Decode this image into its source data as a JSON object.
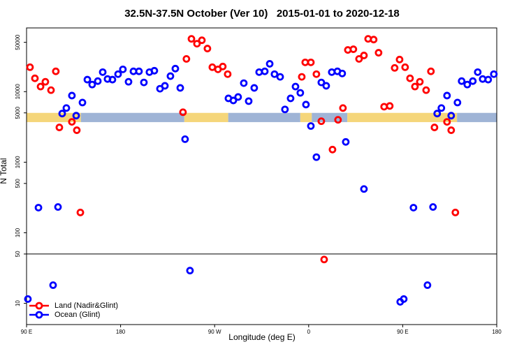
{
  "chart_data": {
    "type": "scatter",
    "title": "32.5N-37.5N October (Ver 10)   2015-01-01 to 2020-12-18",
    "xlabel": "Longitude (deg E)",
    "ylabel": "N Total",
    "xlim": [
      90,
      540
    ],
    "xticks": [
      {
        "value": 90,
        "label": "90 E"
      },
      {
        "value": 180,
        "label": "180"
      },
      {
        "value": 270,
        "label": "90 W"
      },
      {
        "value": 360,
        "label": "0"
      },
      {
        "value": 450,
        "label": "90 E"
      },
      {
        "value": 540,
        "label": "180"
      }
    ],
    "ylim": [
      5,
      80000
    ],
    "log_y": true,
    "yticks": [
      10,
      50,
      100,
      500,
      1000,
      5000,
      10000,
      50000
    ],
    "legend": "bottom-left",
    "band": {
      "ylim": [
        3700,
        5000
      ],
      "segments": [
        {
          "x": [
            90,
            142
          ],
          "color": "#f5d67a"
        },
        {
          "x": [
            142,
            241
          ],
          "color": "#9fb4d6"
        },
        {
          "x": [
            241,
            283
          ],
          "color": "#f5d67a"
        },
        {
          "x": [
            283,
            352
          ],
          "color": "#9fb4d6"
        },
        {
          "x": [
            352,
            363
          ],
          "color": "#f5d67a"
        },
        {
          "x": [
            363,
            397
          ],
          "color": "#9fb4d6"
        },
        {
          "x": [
            397,
            502
          ],
          "color": "#f5d67a"
        },
        {
          "x": [
            502,
            540
          ],
          "color": "#9fb4d6"
        }
      ]
    },
    "series": [
      {
        "name": "Land (Nadir&Glint)",
        "color": "#ff0000",
        "x": [
          93.3,
          98,
          103.4,
          108,
          113.4,
          118,
          121.4,
          133.4,
          138.1,
          141.5,
          239.7,
          243,
          247.8,
          253.1,
          257.8,
          263.1,
          267.8,
          273.2,
          277.8,
          282.5,
          353.4,
          356.7,
          362.1,
          367.4,
          372.1,
          374.8,
          382.8,
          388.1,
          392.8,
          397.5,
          402.8,
          408.2,
          412.9,
          416.9,
          422.2,
          426.9,
          432.2,
          437.6,
          442.3,
          447,
          452.3,
          457,
          461.7,
          466.4,
          472.4,
          477,
          480.4,
          492.4,
          496.4,
          500.4
        ],
        "values": [
          22200,
          15450,
          11800,
          13800,
          10500,
          19400,
          3110,
          3730,
          2840,
          194,
          5110,
          29100,
          56000,
          47800,
          53500,
          40800,
          22200,
          20700,
          22700,
          17700,
          16200,
          26000,
          26000,
          17700,
          3810,
          41.8,
          1510,
          3990,
          5860,
          39000,
          39900,
          29100,
          32600,
          56000,
          54700,
          35600,
          6120,
          6270,
          21700,
          28500,
          22200,
          15450,
          11800,
          13800,
          10500,
          19400,
          3110,
          3730,
          2840,
          194
        ]
      },
      {
        "name": "Ocean (Glint)",
        "color": "#0000ff",
        "x": [
          91.3,
          101.4,
          115.4,
          120.1,
          124.1,
          128.1,
          133.4,
          137.5,
          143.5,
          148.2,
          152.8,
          158.2,
          162.9,
          167.5,
          172.2,
          177.6,
          182.2,
          187.6,
          192.3,
          197.6,
          202.3,
          207.6,
          212.3,
          217.7,
          222.4,
          227.7,
          232.4,
          237.1,
          241.7,
          246.4,
          283.2,
          287.9,
          292.5,
          297.9,
          302.6,
          307.9,
          312.6,
          318,
          322.7,
          327.3,
          332.7,
          337.3,
          342.7,
          347.4,
          352,
          357.4,
          362.1,
          367.4,
          372.1,
          376.8,
          382.1,
          387.5,
          392.1,
          395.5,
          412.9,
          447.6,
          451,
          460.3,
          473.7,
          479,
          483,
          487,
          492.4,
          496.4,
          502.4,
          506.4,
          511.8,
          517.1,
          521.8,
          526.5,
          531.8,
          537.2
        ],
        "values": [
          11.5,
          227,
          18.1,
          232,
          4890,
          5860,
          8790,
          4570,
          7010,
          14800,
          12600,
          14100,
          18900,
          15100,
          14800,
          17700,
          20700,
          13800,
          19400,
          19400,
          13500,
          18900,
          19800,
          11000,
          12100,
          16600,
          21200,
          11300,
          2120,
          29.1,
          8030,
          7500,
          8400,
          13200,
          7340,
          11300,
          18900,
          19400,
          24800,
          17700,
          16200,
          5600,
          8030,
          11800,
          9620,
          6560,
          3260,
          1180,
          13500,
          12100,
          18900,
          19400,
          18100,
          1940,
          417,
          10.5,
          11.5,
          227,
          18.1,
          232,
          4890,
          5860,
          8790,
          4570,
          7010,
          14100,
          12600,
          14100,
          18900,
          15100,
          14800,
          17700
        ]
      }
    ]
  }
}
